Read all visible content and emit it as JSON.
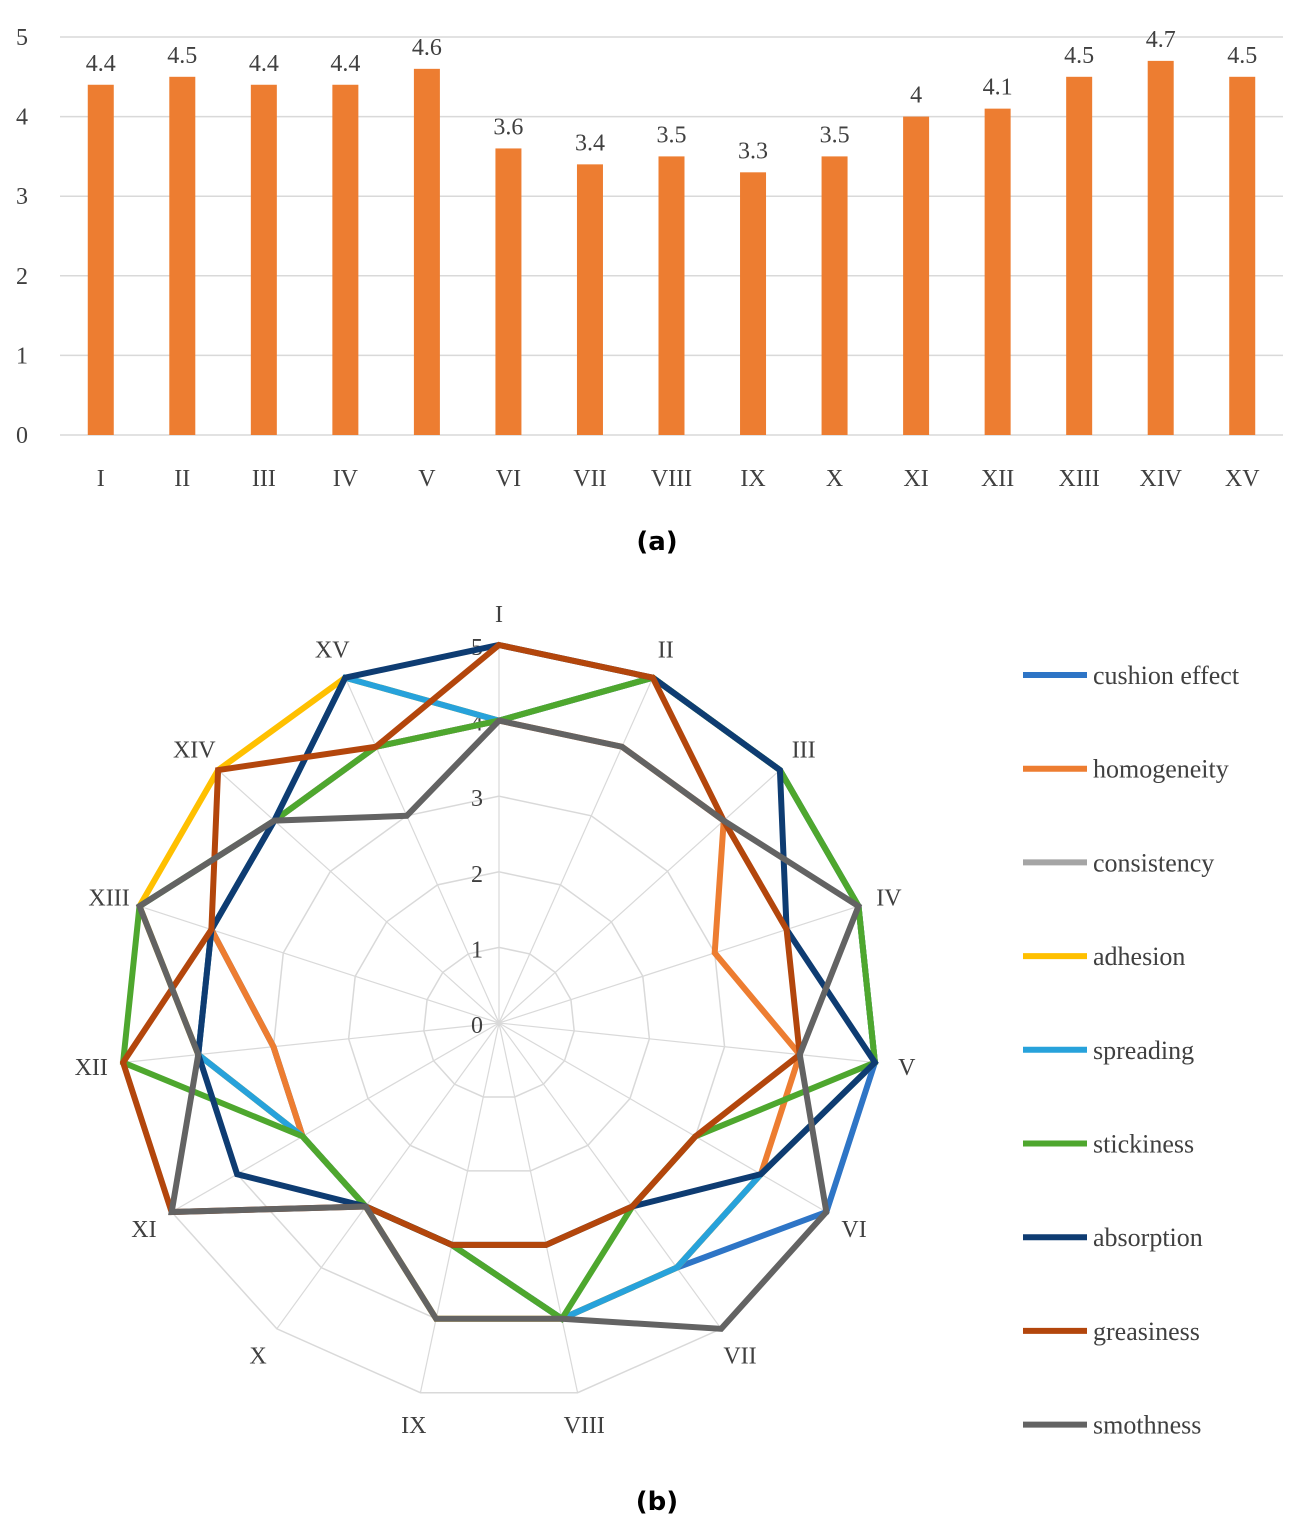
{
  "chart_data": [
    {
      "type": "bar",
      "caption": "(a)",
      "categories": [
        "I",
        "II",
        "III",
        "IV",
        "V",
        "VI",
        "VII",
        "VIII",
        "IX",
        "X",
        "XI",
        "XII",
        "XIII",
        "XIV",
        "XV"
      ],
      "values": [
        4.4,
        4.5,
        4.4,
        4.4,
        4.6,
        3.6,
        3.4,
        3.5,
        3.3,
        3.5,
        4,
        4.1,
        4.5,
        4.7,
        4.5
      ],
      "value_labels": [
        "4.4",
        "4.5",
        "4.4",
        "4.4",
        "4.6",
        "3.6",
        "3.4",
        "3.5",
        "3.3",
        "3.5",
        "4",
        "4.1",
        "4.5",
        "4.7",
        "4.5"
      ],
      "ylim": [
        0,
        5
      ],
      "yticks": [
        "0",
        "1",
        "2",
        "3",
        "4",
        "5"
      ],
      "grid": true,
      "bar_color": "#ED7D31"
    },
    {
      "type": "radar",
      "caption": "(b)",
      "axes": [
        "I",
        "II",
        "III",
        "IV",
        "V",
        "VI",
        "VII",
        "VIII",
        "IX",
        "X",
        "XI",
        "XII",
        "XIII",
        "XIV",
        "XV"
      ],
      "rlim": [
        0,
        5
      ],
      "rticks": [
        "0",
        "1",
        "2",
        "3",
        "4",
        "5"
      ],
      "legend_position": "right",
      "series": [
        {
          "name": "cushion effect",
          "color": "#2E75C6",
          "values": [
            4,
            5,
            5,
            5,
            5,
            5,
            4,
            4,
            3,
            3,
            3,
            3,
            4,
            4,
            4
          ]
        },
        {
          "name": "homogeneity",
          "color": "#ED7D31",
          "values": [
            4,
            4,
            4,
            3,
            4,
            4,
            4,
            4,
            3,
            3,
            3,
            3,
            4,
            4,
            4
          ]
        },
        {
          "name": "consistency",
          "color": "#A5A5A5",
          "values": [
            4,
            5,
            5,
            5,
            5,
            4,
            4,
            4,
            3,
            3,
            3,
            4,
            4,
            4,
            4
          ]
        },
        {
          "name": "adhesion",
          "color": "#FFC000",
          "values": [
            4,
            5,
            5,
            5,
            5,
            4,
            4,
            4,
            4,
            3,
            3,
            4,
            5,
            5,
            5
          ]
        },
        {
          "name": "spreading",
          "color": "#27A2DB",
          "values": [
            4,
            5,
            5,
            5,
            5,
            4,
            4,
            4,
            3,
            3,
            3,
            4,
            4,
            4,
            5
          ]
        },
        {
          "name": "stickiness",
          "color": "#4EA72E",
          "values": [
            4,
            5,
            5,
            5,
            5,
            3,
            3,
            4,
            3,
            3,
            3,
            5,
            5,
            4,
            4
          ]
        },
        {
          "name": "absorption",
          "color": "#0E3C72",
          "values": [
            5,
            5,
            5,
            4,
            5,
            4,
            3,
            3,
            3,
            3,
            4,
            4,
            4,
            4,
            5
          ]
        },
        {
          "name": "greasiness",
          "color": "#B3460C",
          "values": [
            5,
            5,
            4,
            4,
            4,
            3,
            3,
            3,
            3,
            3,
            5,
            5,
            4,
            5,
            4
          ]
        },
        {
          "name": "smothness",
          "color": "#636363",
          "values": [
            4,
            4,
            4,
            5,
            4,
            5,
            5,
            4,
            4,
            3,
            5,
            4,
            5,
            4,
            3
          ]
        }
      ]
    }
  ]
}
